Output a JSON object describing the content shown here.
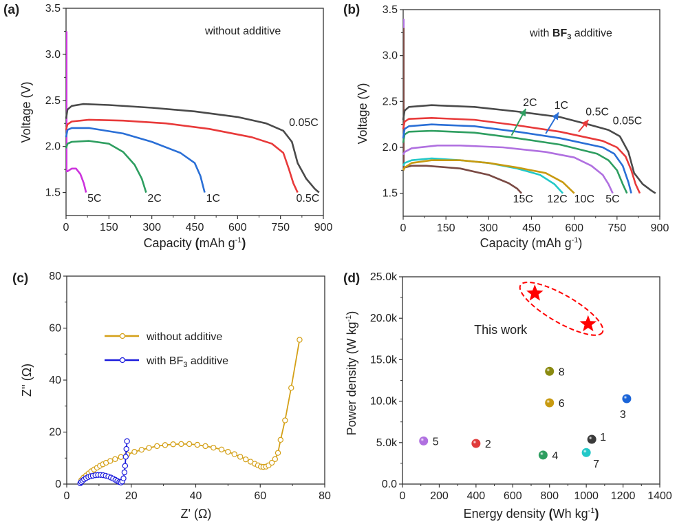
{
  "chart_data": [
    {
      "id": "a",
      "panel_label": "(a)",
      "type": "line",
      "title": "without additive",
      "xlabel": "Capacity (mAh g-1)",
      "xlabel_parts": {
        "pre": "Capacity ",
        "bold_open": "(",
        "unit": "mAh g",
        "sup": "-1",
        "bold_close": ")"
      },
      "ylabel": "Voltage (V)",
      "xlim": [
        0,
        900
      ],
      "ylim": [
        1.25,
        3.5
      ],
      "xticks": [
        "0",
        "150",
        "300",
        "450",
        "600",
        "750",
        "900"
      ],
      "yticks": [
        "1.5",
        "2.0",
        "2.5",
        "3.0",
        "3.5"
      ],
      "series": [
        {
          "name": "0.05C",
          "color": "#4a4a4a",
          "x": [
            0,
            5,
            20,
            60,
            150,
            300,
            450,
            600,
            700,
            760,
            790,
            810,
            840,
            870,
            885
          ],
          "y": [
            2.3,
            2.4,
            2.44,
            2.46,
            2.45,
            2.42,
            2.38,
            2.32,
            2.25,
            2.17,
            2.05,
            1.82,
            1.65,
            1.54,
            1.5
          ]
        },
        {
          "name": "0.5C",
          "color": "#e83a3a",
          "x": [
            0,
            5,
            20,
            80,
            200,
            350,
            500,
            650,
            720,
            760,
            780,
            795,
            810
          ],
          "y": [
            2.18,
            2.24,
            2.27,
            2.29,
            2.28,
            2.25,
            2.19,
            2.1,
            2.03,
            1.93,
            1.75,
            1.6,
            1.5
          ]
        },
        {
          "name": "1C",
          "color": "#2a6fd6",
          "x": [
            0,
            5,
            20,
            80,
            200,
            300,
            400,
            450,
            470,
            485
          ],
          "y": [
            2.1,
            2.18,
            2.2,
            2.2,
            2.14,
            2.05,
            1.93,
            1.82,
            1.68,
            1.5
          ]
        },
        {
          "name": "2C",
          "color": "#2e9e60",
          "x": [
            0,
            5,
            20,
            80,
            150,
            200,
            240,
            265,
            280
          ],
          "y": [
            1.98,
            2.03,
            2.05,
            2.06,
            2.03,
            1.94,
            1.8,
            1.65,
            1.5
          ]
        },
        {
          "name": "5C",
          "color": "#cc33dd",
          "x": [
            0,
            5,
            20,
            35,
            50,
            62,
            70
          ],
          "y": [
            1.73,
            1.73,
            1.76,
            1.76,
            1.7,
            1.6,
            1.5
          ]
        }
      ],
      "spike": {
        "color": "#cc33dd",
        "x": 0,
        "y_from": 1.73,
        "y_to": 3.25
      },
      "labels": [
        {
          "text": "0.05C",
          "x": 780,
          "y": 2.22
        },
        {
          "text": "0.5C",
          "x": 805,
          "y": 1.4
        },
        {
          "text": "1C",
          "x": 490,
          "y": 1.4
        },
        {
          "text": "2C",
          "x": 285,
          "y": 1.4
        },
        {
          "text": "5C",
          "x": 75,
          "y": 1.4
        }
      ]
    },
    {
      "id": "b",
      "panel_label": "(b)",
      "type": "line",
      "title_parts": {
        "pre": "with ",
        "bold": "BF",
        "sub": "3",
        "post": " additive"
      },
      "title": "with BF3 additive",
      "xlabel": "Capacity (mAh g-1)",
      "xlabel_parts": {
        "pre": "Capacity (mAh g",
        "sup": "-1",
        "post": ")"
      },
      "ylabel": "Voltage (V)",
      "xlim": [
        0,
        900
      ],
      "ylim": [
        1.25,
        3.5
      ],
      "xticks": [
        "0",
        "150",
        "300",
        "450",
        "600",
        "750",
        "900"
      ],
      "yticks": [
        "1.5",
        "2.0",
        "2.5",
        "3.0",
        "3.5"
      ],
      "series": [
        {
          "name": "0.05C",
          "color": "#4a4a4a",
          "x": [
            0,
            5,
            20,
            100,
            250,
            400,
            550,
            650,
            720,
            760,
            790,
            810,
            840,
            870,
            885
          ],
          "y": [
            2.3,
            2.4,
            2.44,
            2.46,
            2.44,
            2.39,
            2.33,
            2.25,
            2.19,
            2.12,
            1.95,
            1.72,
            1.6,
            1.53,
            1.5
          ]
        },
        {
          "name": "0.5C",
          "color": "#e83a3a",
          "x": [
            0,
            5,
            20,
            100,
            250,
            400,
            550,
            700,
            750,
            780,
            800,
            815,
            830
          ],
          "y": [
            2.2,
            2.28,
            2.31,
            2.32,
            2.3,
            2.24,
            2.17,
            2.07,
            2.0,
            1.9,
            1.75,
            1.6,
            1.5
          ]
        },
        {
          "name": "1C",
          "color": "#2a6fd6",
          "x": [
            0,
            5,
            20,
            100,
            250,
            400,
            550,
            700,
            740,
            770,
            790,
            800
          ],
          "y": [
            2.1,
            2.2,
            2.23,
            2.25,
            2.23,
            2.17,
            2.1,
            2.0,
            1.93,
            1.8,
            1.62,
            1.5
          ]
        },
        {
          "name": "2C",
          "color": "#2e9e60",
          "x": [
            0,
            5,
            20,
            100,
            250,
            400,
            550,
            680,
            720,
            750,
            770,
            785
          ],
          "y": [
            2.05,
            2.14,
            2.17,
            2.18,
            2.16,
            2.1,
            2.03,
            1.93,
            1.86,
            1.75,
            1.6,
            1.5
          ]
        },
        {
          "name": "5C",
          "color": "#b070e0",
          "x": [
            0,
            5,
            30,
            120,
            200,
            350,
            500,
            600,
            660,
            700,
            720,
            735
          ],
          "y": [
            1.92,
            1.95,
            1.99,
            2.02,
            2.02,
            2.0,
            1.95,
            1.89,
            1.8,
            1.7,
            1.6,
            1.5
          ]
        },
        {
          "name": "10C",
          "color": "#c89a10",
          "x": [
            0,
            5,
            30,
            100,
            200,
            300,
            400,
            500,
            560,
            600
          ],
          "y": [
            1.75,
            1.78,
            1.83,
            1.86,
            1.86,
            1.83,
            1.78,
            1.72,
            1.62,
            1.5
          ]
        },
        {
          "name": "12C",
          "color": "#22c8c8",
          "x": [
            0,
            5,
            30,
            100,
            200,
            300,
            400,
            480,
            530,
            560
          ],
          "y": [
            1.8,
            1.83,
            1.86,
            1.88,
            1.86,
            1.83,
            1.77,
            1.7,
            1.6,
            1.5
          ]
        },
        {
          "name": "15C",
          "color": "#7a4a44",
          "x": [
            0,
            5,
            30,
            80,
            200,
            300,
            370,
            400,
            415
          ],
          "y": [
            1.75,
            1.78,
            1.8,
            1.8,
            1.77,
            1.7,
            1.61,
            1.55,
            1.5
          ]
        }
      ],
      "spike": {
        "color": "#7a4a44",
        "x": 0,
        "y_from": 1.75,
        "y_to": 3.35
      },
      "spike2": {
        "color": "#b070e0",
        "x": 0,
        "y_from": 3.3,
        "y_to": 3.4
      },
      "labels": [
        {
          "text": "0.05C",
          "x": 735,
          "y": 2.25
        },
        {
          "text": "0.5C",
          "x": 640,
          "y": 2.35
        },
        {
          "text": "1C",
          "x": 530,
          "y": 2.42
        },
        {
          "text": "2C",
          "x": 420,
          "y": 2.45
        },
        {
          "text": "5C",
          "x": 710,
          "y": 1.4
        },
        {
          "text": "10C",
          "x": 600,
          "y": 1.4
        },
        {
          "text": "12C",
          "x": 505,
          "y": 1.4
        },
        {
          "text": "15C",
          "x": 385,
          "y": 1.4
        }
      ],
      "arrows": [
        {
          "color": "#2e9e60",
          "from": [
            380,
            2.13
          ],
          "to": [
            430,
            2.42
          ]
        },
        {
          "color": "#2a6fd6",
          "from": [
            500,
            2.15
          ],
          "to": [
            545,
            2.38
          ]
        },
        {
          "color": "#e83a3a",
          "from": [
            615,
            2.17
          ],
          "to": [
            650,
            2.3
          ]
        }
      ]
    },
    {
      "id": "c",
      "panel_label": "(c)",
      "type": "scatter",
      "xlabel": "Z' (Ω)",
      "ylabel": "Z'' (Ω)",
      "xlim": [
        0,
        80
      ],
      "ylim": [
        0,
        80
      ],
      "xticks": [
        "0",
        "20",
        "40",
        "60",
        "80"
      ],
      "yticks": [
        "0",
        "20",
        "40",
        "60",
        "80"
      ],
      "legend": {
        "position": "upper-center",
        "entries": [
          {
            "label": "without additive",
            "color": "#d4a017"
          },
          {
            "label_pre": "with BF",
            "label_sub": "3",
            "label_post": " additive",
            "label": "with BF3 additive",
            "color": "#1a1adc"
          }
        ]
      },
      "series": [
        {
          "name": "without additive",
          "color": "#d4a017",
          "x": [
            4.5,
            5.2,
            6,
            6.8,
            7.6,
            8.5,
            9.4,
            10.3,
            11.2,
            12.2,
            13.5,
            15,
            16.8,
            18.8,
            21,
            23.2,
            25.5,
            28,
            30.5,
            33,
            35.5,
            38,
            40.5,
            43,
            45.5,
            48,
            50,
            52,
            53.8,
            55.5,
            57,
            58.3,
            59.3,
            60.2,
            61,
            61.8,
            62.6,
            63.6,
            64.6,
            65.5,
            66.3,
            67.7,
            69.6,
            72.2
          ],
          "y": [
            1.5,
            2.5,
            3.3,
            4.1,
            4.9,
            5.6,
            6.3,
            7,
            7.6,
            8.2,
            8.9,
            9.6,
            10.4,
            11.4,
            12.4,
            13.2,
            13.9,
            14.6,
            15,
            15.3,
            15.4,
            15.4,
            15.1,
            14.6,
            14,
            13.3,
            12.4,
            11.5,
            10.5,
            9.5,
            8.6,
            7.8,
            7.2,
            6.7,
            6.6,
            6.7,
            7.2,
            8.2,
            9.6,
            12,
            17,
            24.5,
            37,
            55.5
          ]
        },
        {
          "name": "with BF3 additive",
          "color": "#1a1adc",
          "x": [
            4.2,
            4.5,
            4.9,
            5.4,
            6,
            6.7,
            7.4,
            8.1,
            8.9,
            9.7,
            10.5,
            11.3,
            12.1,
            12.9,
            13.7,
            14.4,
            15.1,
            15.7,
            16.3,
            16.8,
            17.2,
            17.6,
            17.9,
            18.1,
            18.3,
            18.5,
            18.7
          ],
          "y": [
            0.3,
            0.8,
            1.3,
            1.8,
            2.3,
            2.7,
            3,
            3.2,
            3.4,
            3.5,
            3.5,
            3.4,
            3.2,
            2.9,
            2.5,
            2.1,
            1.6,
            1.2,
            0.8,
            0.6,
            1,
            2.2,
            4.5,
            7,
            10.5,
            13.5,
            16.5
          ]
        }
      ]
    },
    {
      "id": "d",
      "panel_label": "(d)",
      "type": "scatter",
      "xlabel": "Energy density (Wh kg-1)",
      "xlabel_parts": {
        "pre": "Energy density ",
        "bold_open": "(",
        "unit": "Wh kg",
        "sup": "-1",
        "bold_close": ")"
      },
      "ylabel": "Power density (W kg-1)",
      "ylabel_parts": {
        "pre": "Power density (W kg",
        "sup": "-1",
        "post": ")"
      },
      "xlim": [
        0,
        1400
      ],
      "ylim": [
        0,
        25000
      ],
      "xticks": [
        "0",
        "200",
        "400",
        "600",
        "800",
        "1000",
        "1200",
        "1400"
      ],
      "yticks": [
        "0.0",
        "5.0k",
        "10.0k",
        "15.0k",
        "20.0k",
        "25.0k"
      ],
      "points": [
        {
          "label": "1",
          "x": 1030,
          "y": 5400,
          "color": "#3a3a3a",
          "label_pos": "right-up"
        },
        {
          "label": "2",
          "x": 400,
          "y": 4900,
          "color": "#e03a3a",
          "label_pos": "right"
        },
        {
          "label": "3",
          "x": 1220,
          "y": 10300,
          "color": "#1a64d8",
          "label_pos": "below-left"
        },
        {
          "label": "4",
          "x": 765,
          "y": 3500,
          "color": "#2e9e60",
          "label_pos": "right"
        },
        {
          "label": "5",
          "x": 115,
          "y": 5200,
          "color": "#b070e0",
          "label_pos": "right"
        },
        {
          "label": "6",
          "x": 800,
          "y": 9800,
          "color": "#c89a10",
          "label_pos": "right"
        },
        {
          "label": "7",
          "x": 1000,
          "y": 3800,
          "color": "#22c8c8",
          "label_pos": "below-right"
        },
        {
          "label": "8",
          "x": 800,
          "y": 13600,
          "color": "#8a8a10",
          "label_pos": "right"
        }
      ],
      "this_work": {
        "label": "This work",
        "color": "#ff0000",
        "stars": [
          {
            "x": 720,
            "y": 23000
          },
          {
            "x": 1010,
            "y": 19300
          }
        ]
      }
    }
  ]
}
